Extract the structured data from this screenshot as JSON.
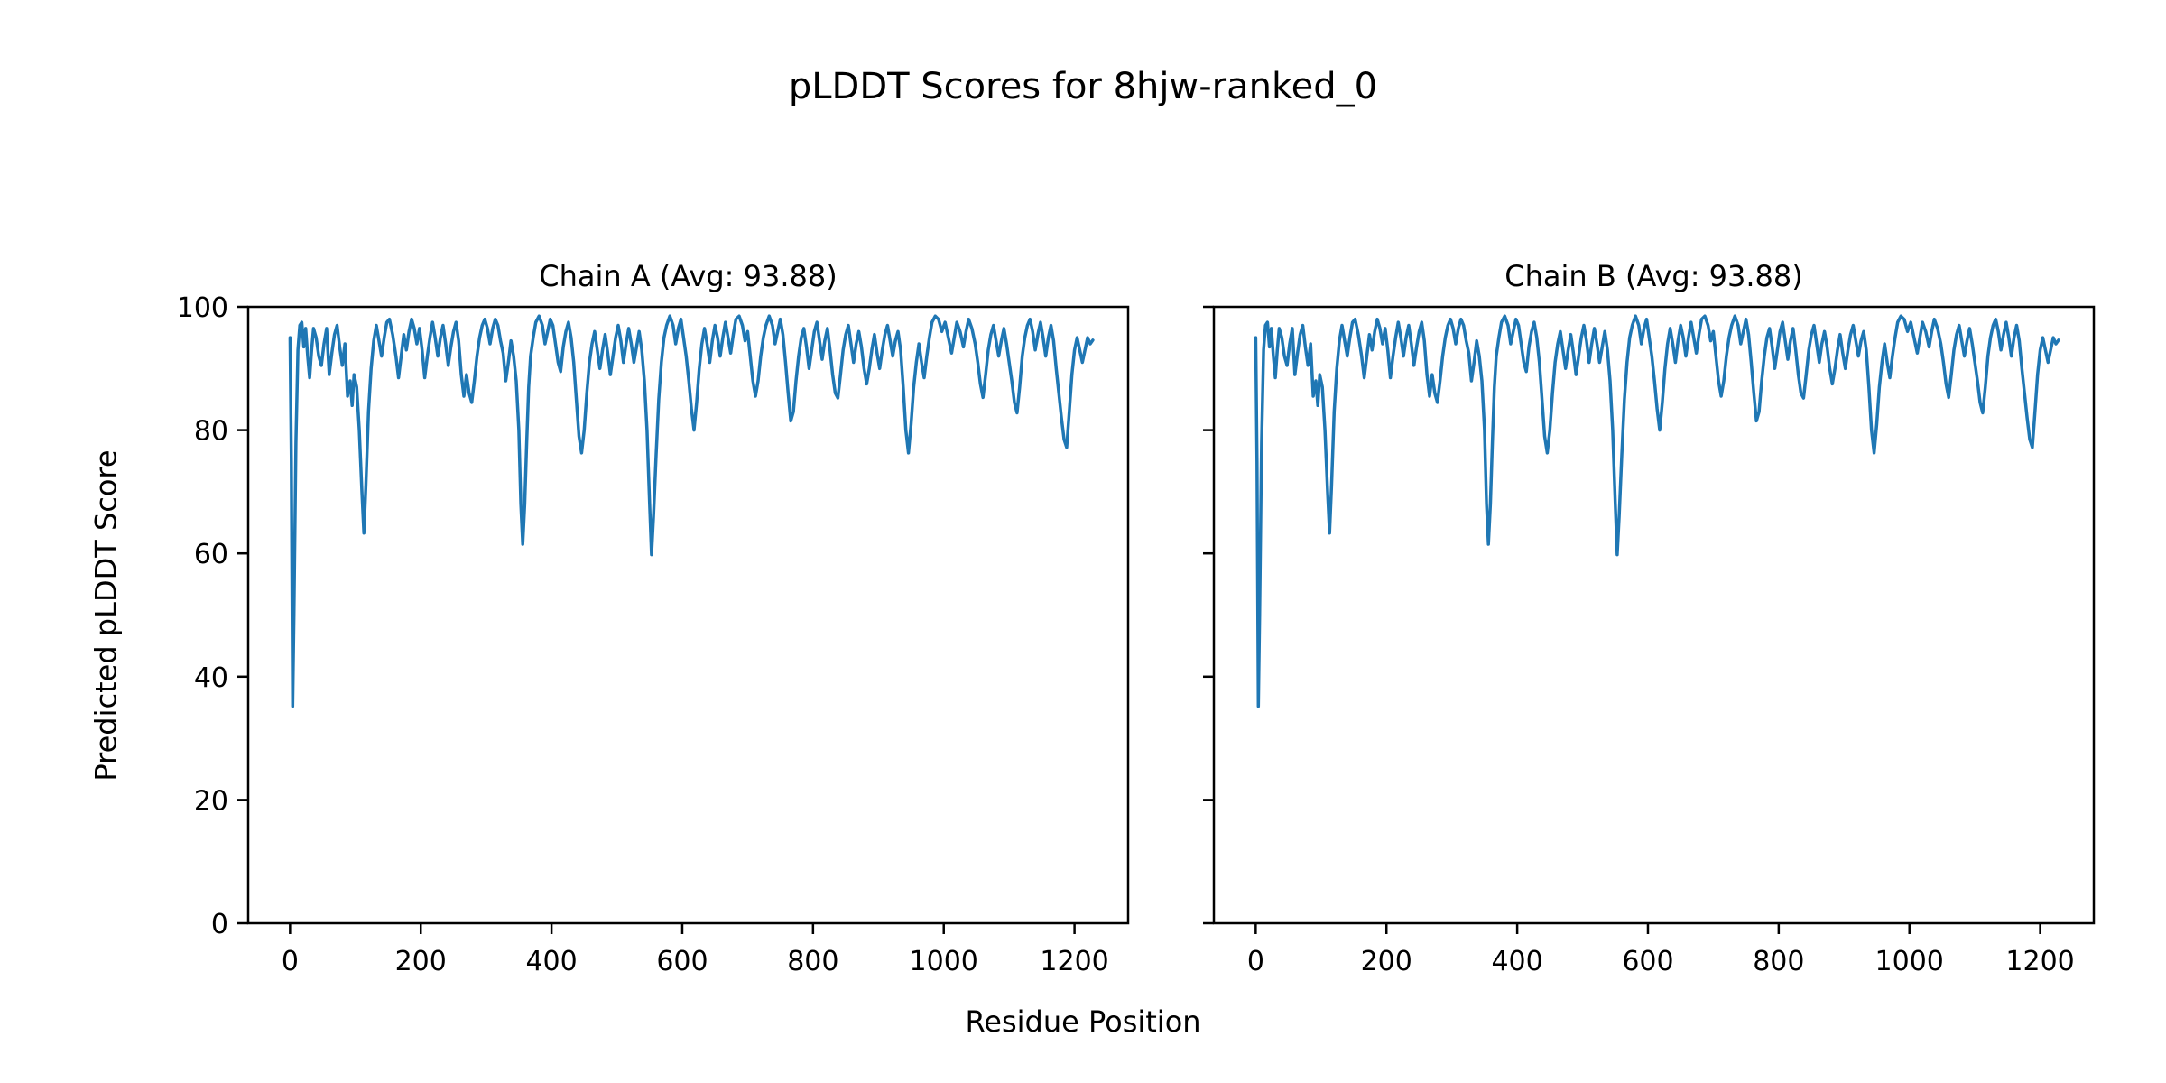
{
  "figure": {
    "title": "pLDDT Scores for 8hjw-ranked_0",
    "background_color": "#ffffff",
    "text_color": "#000000"
  },
  "chart_data": {
    "type": "line",
    "suptitle": "pLDDT Scores for 8hjw-ranked_0",
    "xlabel": "Residue Position",
    "ylabel": "Predicted pLDDT Score",
    "xlim": [
      -64,
      1282
    ],
    "ylim": [
      0,
      100
    ],
    "xticks": [
      0,
      200,
      400,
      600,
      800,
      1000,
      1200
    ],
    "yticks": [
      0,
      20,
      40,
      60,
      80,
      100
    ],
    "grid": false,
    "legend": "none",
    "line_color": "#1f77b4",
    "axis_color": "#000000",
    "panels": [
      {
        "chain": "A",
        "title": "Chain A (Avg: 93.88)",
        "avg": 93.88,
        "show_y_tick_labels": true
      },
      {
        "chain": "B",
        "title": "Chain B (Avg: 93.88)",
        "avg": 93.88,
        "show_y_tick_labels": false
      }
    ],
    "series": {
      "name": "pLDDT",
      "points": [
        [
          0,
          95
        ],
        [
          2,
          75
        ],
        [
          4,
          35.2
        ],
        [
          6,
          50
        ],
        [
          9,
          78
        ],
        [
          12,
          93
        ],
        [
          15,
          97
        ],
        [
          18,
          97.5
        ],
        [
          21,
          93.5
        ],
        [
          24,
          96.5
        ],
        [
          27,
          92
        ],
        [
          30,
          88.5
        ],
        [
          33,
          93
        ],
        [
          36,
          96.5
        ],
        [
          40,
          95
        ],
        [
          44,
          92
        ],
        [
          48,
          90.5
        ],
        [
          52,
          94
        ],
        [
          56,
          96.5
        ],
        [
          60,
          89
        ],
        [
          64,
          92.5
        ],
        [
          68,
          95.5
        ],
        [
          72,
          97
        ],
        [
          76,
          93.5
        ],
        [
          80,
          90.5
        ],
        [
          84,
          94
        ],
        [
          88,
          85.5
        ],
        [
          92,
          88
        ],
        [
          95,
          84
        ],
        [
          98,
          89
        ],
        [
          102,
          87
        ],
        [
          106,
          80
        ],
        [
          110,
          70
        ],
        [
          113,
          63.3
        ],
        [
          116,
          71
        ],
        [
          120,
          83
        ],
        [
          124,
          90
        ],
        [
          128,
          94.5
        ],
        [
          132,
          97
        ],
        [
          136,
          94.5
        ],
        [
          140,
          92
        ],
        [
          144,
          95
        ],
        [
          148,
          97.5
        ],
        [
          152,
          98
        ],
        [
          157,
          95.5
        ],
        [
          162,
          92
        ],
        [
          166,
          88.5
        ],
        [
          170,
          92
        ],
        [
          174,
          95.5
        ],
        [
          178,
          93
        ],
        [
          182,
          96
        ],
        [
          186,
          98
        ],
        [
          190,
          96.5
        ],
        [
          194,
          94
        ],
        [
          198,
          96.5
        ],
        [
          202,
          93
        ],
        [
          206,
          88.5
        ],
        [
          210,
          92
        ],
        [
          214,
          95
        ],
        [
          218,
          97.5
        ],
        [
          222,
          95
        ],
        [
          226,
          92
        ],
        [
          230,
          95
        ],
        [
          234,
          97
        ],
        [
          238,
          94
        ],
        [
          242,
          90.5
        ],
        [
          246,
          93.5
        ],
        [
          250,
          96
        ],
        [
          254,
          97.5
        ],
        [
          258,
          94.5
        ],
        [
          262,
          89
        ],
        [
          266,
          85.5
        ],
        [
          270,
          89
        ],
        [
          274,
          86
        ],
        [
          278,
          84.5
        ],
        [
          282,
          88
        ],
        [
          286,
          92
        ],
        [
          290,
          95
        ],
        [
          294,
          97
        ],
        [
          298,
          98
        ],
        [
          302,
          96.5
        ],
        [
          306,
          94
        ],
        [
          310,
          96.5
        ],
        [
          314,
          98
        ],
        [
          318,
          97
        ],
        [
          322,
          94.5
        ],
        [
          326,
          92.5
        ],
        [
          330,
          88
        ],
        [
          334,
          91
        ],
        [
          338,
          94.5
        ],
        [
          342,
          92
        ],
        [
          346,
          88
        ],
        [
          350,
          80
        ],
        [
          353,
          68
        ],
        [
          356,
          61.5
        ],
        [
          359,
          68
        ],
        [
          362,
          78
        ],
        [
          365,
          87
        ],
        [
          368,
          92
        ],
        [
          372,
          95
        ],
        [
          376,
          97.5
        ],
        [
          381,
          98.5
        ],
        [
          386,
          97
        ],
        [
          390,
          94
        ],
        [
          394,
          96
        ],
        [
          398,
          98
        ],
        [
          402,
          97
        ],
        [
          406,
          94
        ],
        [
          410,
          91
        ],
        [
          414,
          89.5
        ],
        [
          418,
          93.5
        ],
        [
          422,
          96
        ],
        [
          426,
          97.5
        ],
        [
          430,
          95
        ],
        [
          434,
          91
        ],
        [
          438,
          85
        ],
        [
          442,
          79
        ],
        [
          446,
          76.3
        ],
        [
          450,
          80
        ],
        [
          454,
          86
        ],
        [
          458,
          91
        ],
        [
          462,
          94
        ],
        [
          466,
          96
        ],
        [
          470,
          93
        ],
        [
          474,
          90
        ],
        [
          478,
          93
        ],
        [
          482,
          95.5
        ],
        [
          486,
          92.5
        ],
        [
          490,
          89
        ],
        [
          494,
          92
        ],
        [
          498,
          95
        ],
        [
          502,
          97
        ],
        [
          506,
          94.5
        ],
        [
          510,
          91
        ],
        [
          514,
          94
        ],
        [
          518,
          96.5
        ],
        [
          522,
          94
        ],
        [
          526,
          91
        ],
        [
          530,
          93.5
        ],
        [
          534,
          96
        ],
        [
          538,
          93
        ],
        [
          542,
          88
        ],
        [
          546,
          80
        ],
        [
          550,
          68
        ],
        [
          553,
          59.8
        ],
        [
          556,
          66
        ],
        [
          560,
          76
        ],
        [
          564,
          85
        ],
        [
          568,
          91
        ],
        [
          572,
          95
        ],
        [
          576,
          97
        ],
        [
          581,
          98.5
        ],
        [
          586,
          97
        ],
        [
          590,
          94
        ],
        [
          594,
          96.5
        ],
        [
          598,
          98
        ],
        [
          602,
          95
        ],
        [
          606,
          92
        ],
        [
          610,
          88
        ],
        [
          614,
          83.5
        ],
        [
          618,
          80
        ],
        [
          622,
          84.5
        ],
        [
          626,
          90
        ],
        [
          630,
          94
        ],
        [
          634,
          96.5
        ],
        [
          638,
          94
        ],
        [
          642,
          91
        ],
        [
          646,
          94.5
        ],
        [
          650,
          97
        ],
        [
          654,
          95
        ],
        [
          658,
          92
        ],
        [
          662,
          95
        ],
        [
          666,
          97.5
        ],
        [
          670,
          95
        ],
        [
          674,
          92.5
        ],
        [
          678,
          95.5
        ],
        [
          682,
          98
        ],
        [
          687,
          98.5
        ],
        [
          692,
          97
        ],
        [
          696,
          94.5
        ],
        [
          700,
          96
        ],
        [
          704,
          92
        ],
        [
          708,
          88
        ],
        [
          712,
          85.5
        ],
        [
          716,
          88
        ],
        [
          720,
          92
        ],
        [
          724,
          95
        ],
        [
          728,
          97
        ],
        [
          733,
          98.5
        ],
        [
          738,
          97
        ],
        [
          742,
          94
        ],
        [
          746,
          96
        ],
        [
          750,
          98
        ],
        [
          754,
          95.5
        ],
        [
          758,
          91
        ],
        [
          762,
          86
        ],
        [
          766,
          81.5
        ],
        [
          770,
          83
        ],
        [
          774,
          88
        ],
        [
          778,
          92
        ],
        [
          782,
          95
        ],
        [
          786,
          96.5
        ],
        [
          790,
          93.5
        ],
        [
          794,
          90
        ],
        [
          798,
          93
        ],
        [
          802,
          96
        ],
        [
          806,
          97.5
        ],
        [
          810,
          94.5
        ],
        [
          814,
          91.5
        ],
        [
          818,
          94.5
        ],
        [
          822,
          96.5
        ],
        [
          826,
          93
        ],
        [
          830,
          89
        ],
        [
          834,
          86
        ],
        [
          838,
          85.2
        ],
        [
          842,
          89
        ],
        [
          846,
          93
        ],
        [
          850,
          95.5
        ],
        [
          854,
          97
        ],
        [
          858,
          94
        ],
        [
          862,
          91
        ],
        [
          866,
          94
        ],
        [
          870,
          96
        ],
        [
          874,
          93.5
        ],
        [
          878,
          90
        ],
        [
          882,
          87.5
        ],
        [
          886,
          90
        ],
        [
          890,
          93
        ],
        [
          894,
          95.5
        ],
        [
          898,
          92.5
        ],
        [
          902,
          90
        ],
        [
          906,
          93
        ],
        [
          910,
          95.5
        ],
        [
          914,
          97
        ],
        [
          918,
          94.5
        ],
        [
          922,
          92
        ],
        [
          926,
          94.5
        ],
        [
          930,
          96
        ],
        [
          934,
          93
        ],
        [
          938,
          87
        ],
        [
          942,
          80
        ],
        [
          946,
          76.3
        ],
        [
          950,
          81
        ],
        [
          954,
          87
        ],
        [
          958,
          91
        ],
        [
          962,
          94
        ],
        [
          966,
          91
        ],
        [
          970,
          88.5
        ],
        [
          974,
          92
        ],
        [
          978,
          95
        ],
        [
          982,
          97.5
        ],
        [
          987,
          98.5
        ],
        [
          992,
          98
        ],
        [
          997,
          96
        ],
        [
          1002,
          97.5
        ],
        [
          1007,
          95
        ],
        [
          1012,
          92.5
        ],
        [
          1016,
          95
        ],
        [
          1020,
          97.5
        ],
        [
          1025,
          96
        ],
        [
          1030,
          93.5
        ],
        [
          1034,
          96
        ],
        [
          1038,
          98
        ],
        [
          1043,
          96.5
        ],
        [
          1048,
          94
        ],
        [
          1052,
          91
        ],
        [
          1056,
          87.5
        ],
        [
          1060,
          85.3
        ],
        [
          1064,
          89
        ],
        [
          1068,
          93
        ],
        [
          1072,
          95.5
        ],
        [
          1076,
          97
        ],
        [
          1080,
          94.5
        ],
        [
          1084,
          92
        ],
        [
          1088,
          94.5
        ],
        [
          1092,
          96.5
        ],
        [
          1096,
          94
        ],
        [
          1100,
          91
        ],
        [
          1104,
          88
        ],
        [
          1108,
          84.5
        ],
        [
          1112,
          82.8
        ],
        [
          1116,
          87
        ],
        [
          1120,
          92
        ],
        [
          1124,
          95
        ],
        [
          1128,
          97
        ],
        [
          1132,
          98
        ],
        [
          1136,
          96
        ],
        [
          1140,
          93
        ],
        [
          1144,
          95.5
        ],
        [
          1148,
          97.5
        ],
        [
          1152,
          95
        ],
        [
          1156,
          92
        ],
        [
          1160,
          95
        ],
        [
          1164,
          97
        ],
        [
          1168,
          94.5
        ],
        [
          1172,
          90
        ],
        [
          1176,
          86
        ],
        [
          1180,
          82
        ],
        [
          1184,
          78.5
        ],
        [
          1188,
          77.2
        ],
        [
          1192,
          83
        ],
        [
          1196,
          89
        ],
        [
          1200,
          93
        ],
        [
          1204,
          95
        ],
        [
          1208,
          93
        ],
        [
          1212,
          91
        ],
        [
          1216,
          93
        ],
        [
          1220,
          95
        ],
        [
          1224,
          94
        ],
        [
          1228,
          94.6
        ]
      ]
    }
  }
}
